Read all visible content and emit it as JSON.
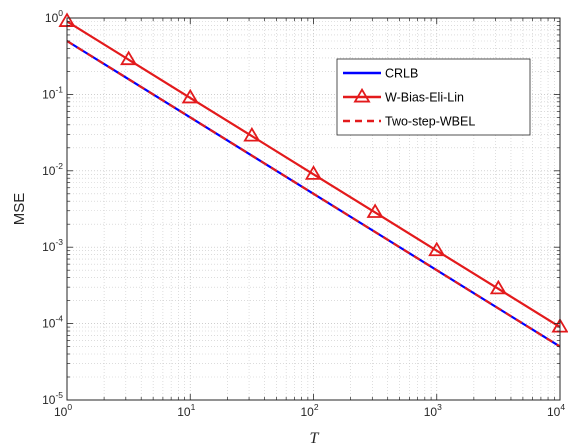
{
  "chart_data": {
    "type": "line",
    "title": "",
    "xlabel": "T",
    "ylabel": "MSE",
    "xscale": "log",
    "yscale": "log",
    "xlim": [
      1,
      10000
    ],
    "ylim": [
      1e-05,
      1
    ],
    "grid": "major-and-minor",
    "legend_position": "top-right",
    "x_ticks": [
      {
        "base": "10",
        "exp": "0"
      },
      {
        "base": "10",
        "exp": "1"
      },
      {
        "base": "10",
        "exp": "2"
      },
      {
        "base": "10",
        "exp": "3"
      },
      {
        "base": "10",
        "exp": "4"
      }
    ],
    "y_ticks": [
      {
        "base": "10",
        "exp": "0"
      },
      {
        "base": "10",
        "exp": "-1"
      },
      {
        "base": "10",
        "exp": "-2"
      },
      {
        "base": "10",
        "exp": "-3"
      },
      {
        "base": "10",
        "exp": "-4"
      },
      {
        "base": "10",
        "exp": "-5"
      }
    ],
    "series": [
      {
        "name": "CRLB",
        "color": "#0000ff",
        "line_style": "solid",
        "marker": "none",
        "x": [
          1,
          10000
        ],
        "y": [
          0.5,
          5e-05
        ]
      },
      {
        "name": "W-Bias-Eli-Lin",
        "color": "#e31a1c",
        "line_style": "solid",
        "marker": "triangle",
        "x": [
          1,
          3.162,
          10,
          31.62,
          100,
          316.2,
          1000,
          3162,
          10000
        ],
        "y": [
          0.9,
          0.285,
          0.09,
          0.0285,
          0.009,
          0.00285,
          0.0009,
          0.000285,
          9e-05
        ]
      },
      {
        "name": "Two-step-WBEL",
        "color": "#e31a1c",
        "line_style": "dashed",
        "marker": "none",
        "x": [
          1,
          10000
        ],
        "y": [
          0.5,
          5e-05
        ]
      }
    ]
  }
}
